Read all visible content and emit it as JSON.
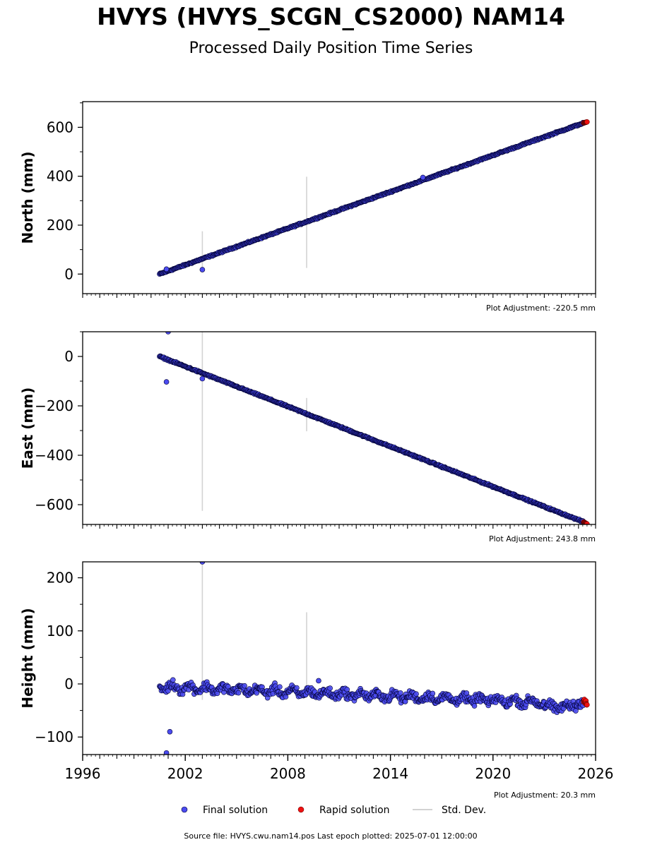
{
  "title": "HVYS (HVYS_SCGN_CS2000) NAM14",
  "subtitle": "Processed Daily Position Time Series",
  "colors": {
    "final": "#4b4bf0",
    "rapid": "#ee1111",
    "stddev": "#d3d3d3",
    "edge": "#000033"
  },
  "legend": {
    "final": "Final solution",
    "rapid": "Rapid solution",
    "stddev": "Std. Dev."
  },
  "footer": "Source file: HVYS.cwu.nam14.pos  Last epoch plotted: 2025-07-01 12:00:00",
  "chart_data": [
    {
      "type": "scatter",
      "ylabel": "North (mm)",
      "xlim": [
        1996,
        2026
      ],
      "ylim": [
        -80,
        705
      ],
      "yticks": [
        0,
        200,
        400,
        600
      ],
      "yticklabels": [
        "0",
        "200",
        "400",
        "600"
      ],
      "adjustment": "Plot Adjustment: -220.5 mm",
      "series": [
        {
          "kind": "final_trend",
          "x": [
            2000.5,
            2025.3
          ],
          "y": [
            0,
            618
          ]
        },
        {
          "kind": "rapid",
          "x": [
            2025.3,
            2025.5
          ],
          "y": [
            618,
            622
          ]
        }
      ],
      "outliers": [
        {
          "x": 2003.0,
          "y": 18
        },
        {
          "x": 2000.9,
          "y": 20
        },
        {
          "x": 2015.9,
          "y": 395
        }
      ],
      "stddev_bars": [
        {
          "x": 2003.0,
          "y0": 18,
          "y1": 175
        },
        {
          "x": 2009.1,
          "y0": 25,
          "y1": 398
        }
      ]
    },
    {
      "type": "scatter",
      "ylabel": "East (mm)",
      "xlim": [
        1996,
        2026
      ],
      "ylim": [
        -680,
        100
      ],
      "yticks": [
        0,
        -200,
        -400,
        -600
      ],
      "yticklabels": [
        "0",
        "−200",
        "−400",
        "−600"
      ],
      "adjustment": "Plot Adjustment: 243.8 mm",
      "series": [
        {
          "kind": "final_trend",
          "x": [
            2000.5,
            2025.3
          ],
          "y": [
            0,
            -670
          ]
        },
        {
          "kind": "rapid",
          "x": [
            2025.3,
            2025.5
          ],
          "y": [
            -670,
            -678
          ]
        }
      ],
      "outliers": [
        {
          "x": 2001.0,
          "y": 100
        },
        {
          "x": 2000.9,
          "y": -103
        },
        {
          "x": 2003.0,
          "y": -90
        }
      ],
      "stddev_bars": [
        {
          "x": 2003.0,
          "y0": 100,
          "y1": -625
        },
        {
          "x": 2009.1,
          "y0": -168,
          "y1": -303
        }
      ]
    },
    {
      "type": "scatter",
      "ylabel": "Height (mm)",
      "xlabel_ticks": [
        "1996",
        "2002",
        "2008",
        "2014",
        "2020",
        "2026"
      ],
      "xticks": [
        1996,
        2002,
        2008,
        2014,
        2020,
        2026
      ],
      "xlim": [
        1996,
        2026
      ],
      "ylim": [
        -133,
        230
      ],
      "yticks": [
        200,
        100,
        0,
        -100
      ],
      "yticklabels": [
        "200",
        "100",
        "0",
        "−100"
      ],
      "adjustment": "Plot Adjustment: 20.3 mm",
      "series": [
        {
          "kind": "final_noise",
          "x": [
            2000.5,
            2025.3
          ],
          "y": [
            -5,
            -38
          ]
        },
        {
          "kind": "rapid",
          "x": [
            2025.3,
            2025.5
          ],
          "y": [
            -30,
            -40
          ]
        }
      ],
      "outliers": [
        {
          "x": 2003.0,
          "y": 230
        },
        {
          "x": 2001.1,
          "y": -90
        },
        {
          "x": 2000.9,
          "y": -130
        },
        {
          "x": 2009.8,
          "y": 6
        }
      ],
      "stddev_bars": [
        {
          "x": 2003.0,
          "y0": 230,
          "y1": -30
        },
        {
          "x": 2009.1,
          "y0": 135,
          "y1": -20
        }
      ]
    }
  ]
}
